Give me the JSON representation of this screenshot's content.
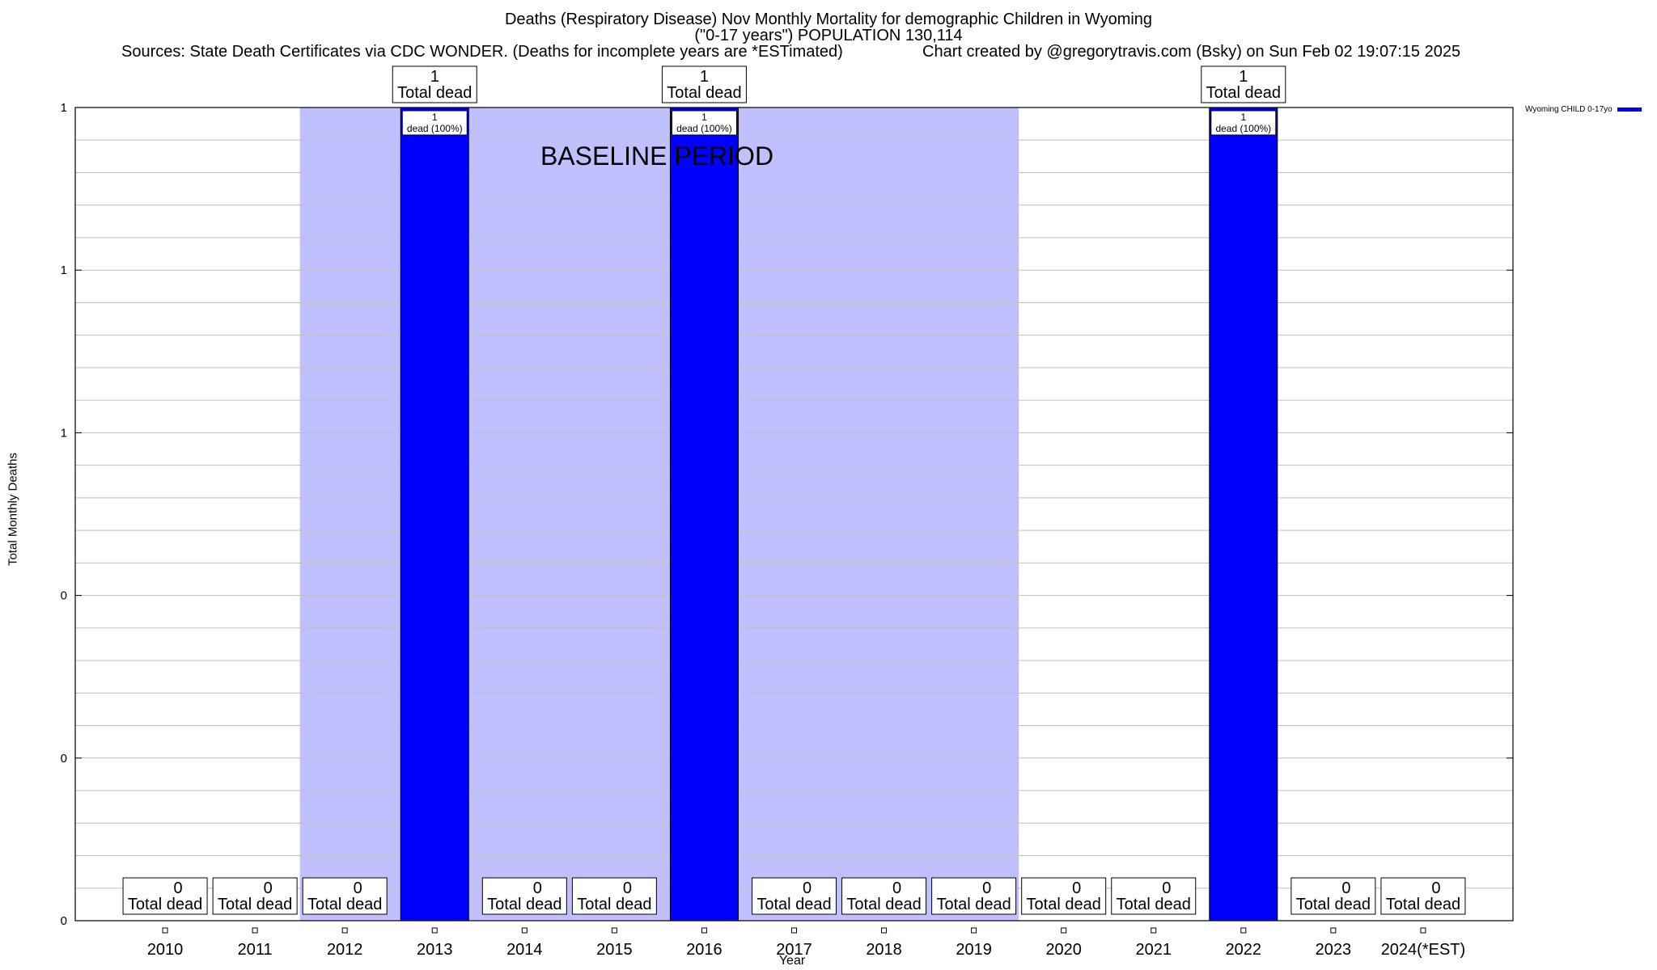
{
  "header": {
    "title_line1": "Deaths (Respiratory Disease) Nov Monthly Mortality for demographic Children in Wyoming",
    "title_line2": "(\"0-17 years\") POPULATION 130,114",
    "sources": "Sources: State Death Certificates via CDC WONDER. (Deaths for incomplete years are *ESTimated)",
    "credit": "Chart created by @gregorytravis.com (Bsky) on Sun Feb 02 19:07:15 2025"
  },
  "chart_data": {
    "type": "bar",
    "categories": [
      "2010",
      "2011",
      "2012",
      "2013",
      "2014",
      "2015",
      "2016",
      "2017",
      "2018",
      "2019",
      "2020",
      "2021",
      "2022",
      "2023",
      "2024(*EST)"
    ],
    "series": [
      {
        "name": "Wyoming CHILD 0-17yo",
        "values": [
          0,
          0,
          0,
          1,
          0,
          0,
          1,
          0,
          0,
          0,
          0,
          0,
          1,
          0,
          0
        ]
      }
    ],
    "ylim": [
      0,
      1
    ],
    "ytick_labels": [
      "0",
      "0",
      "0",
      "1",
      "1",
      "1"
    ],
    "xlabel": "Year",
    "ylabel": "Total Monthly Deaths",
    "total_label": "Total dead",
    "inner_label": "dead (100%)",
    "baseline_label": "BASELINE PERIOD",
    "baseline_range": [
      "2012",
      "2019"
    ],
    "grid": true,
    "legend_position": "top-right",
    "colors": {
      "bar": "#0000ff",
      "baseline": "#c0c0ff",
      "grid": "#c0c0c0"
    }
  }
}
